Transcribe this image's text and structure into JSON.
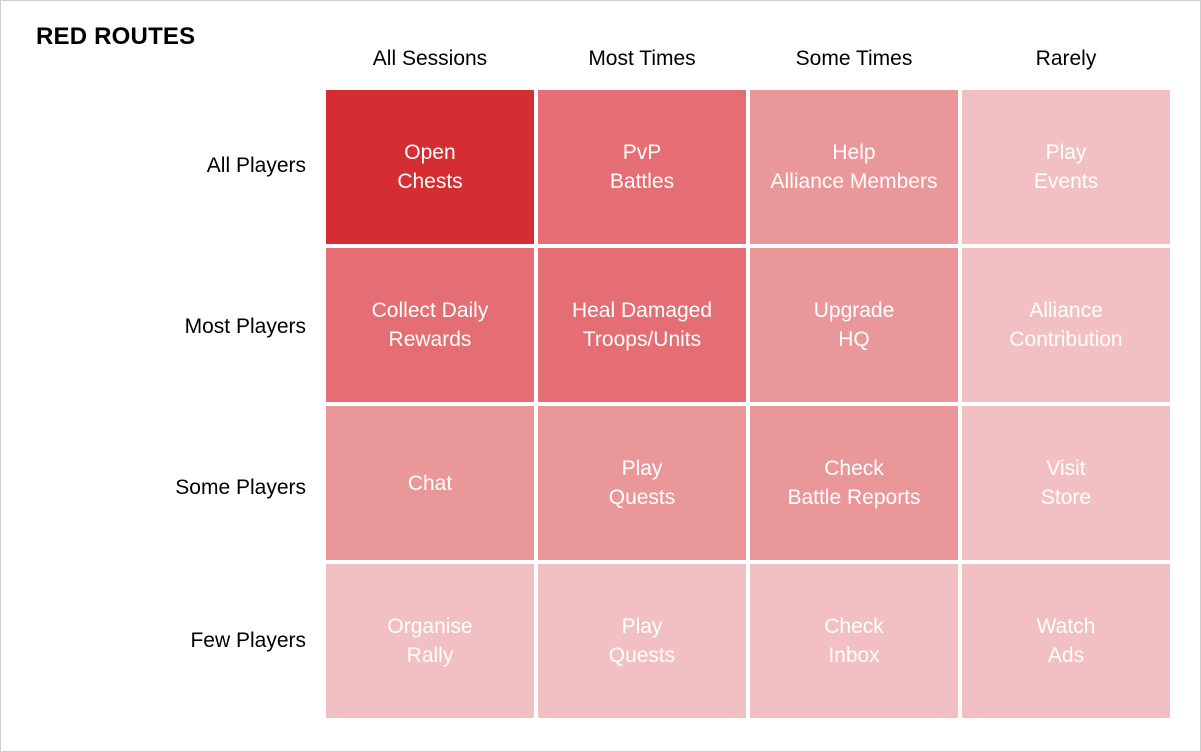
{
  "title": "RED ROUTES",
  "columns": [
    "All Sessions",
    "Most Times",
    "Some Times",
    "Rarely"
  ],
  "rows": [
    "All Players",
    "Most Players",
    "Some Players",
    "Few Players"
  ],
  "cells": [
    [
      "Open\nChests",
      "PvP\nBattles",
      "Help\nAlliance Members",
      "Play\nEvents"
    ],
    [
      "Collect Daily\nRewards",
      "Heal Damaged\nTroops/Units",
      "Upgrade\nHQ",
      "Alliance\nContribution"
    ],
    [
      "Chat",
      "Play\nQuests",
      "Check\nBattle Reports",
      "Visit\nStore"
    ],
    [
      "Organise\nRally",
      "Play\nQuests",
      "Check\nInbox",
      "Watch\nAds"
    ]
  ],
  "colors": {
    "level_1": "#d42e33",
    "level_2": "#e46e73",
    "level_3": "#ea979a",
    "level_4": "#f2c0c2",
    "cell_text": "#ffffff"
  }
}
